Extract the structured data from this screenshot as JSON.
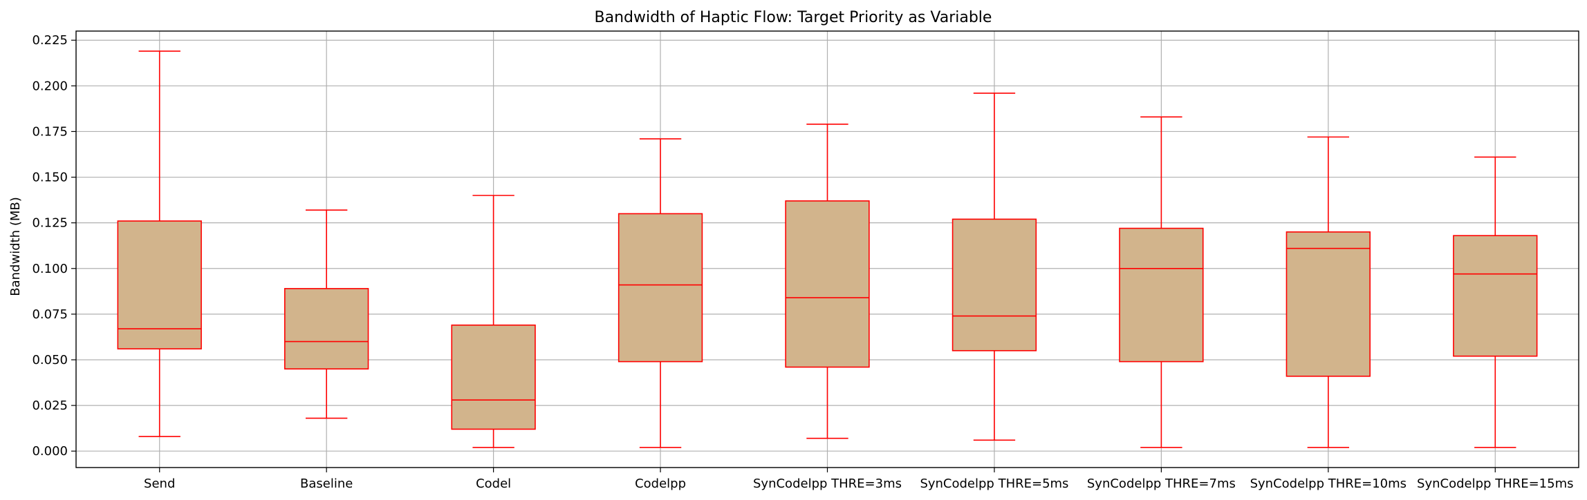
{
  "chart_data": {
    "type": "box",
    "title": "Bandwidth of Haptic Flow: Target Priority as Variable",
    "xlabel": "",
    "ylabel": "Bandwidth (MB)",
    "ylim": [
      -0.009,
      0.23
    ],
    "yticks": [
      0.0,
      0.025,
      0.05,
      0.075,
      0.1,
      0.125,
      0.15,
      0.175,
      0.2,
      0.225
    ],
    "ytick_labels": [
      "0.000",
      "0.025",
      "0.050",
      "0.075",
      "0.100",
      "0.125",
      "0.150",
      "0.175",
      "0.200",
      "0.225"
    ],
    "grid": true,
    "colors": {
      "box_fill": "#d2b48c",
      "box_edge": "#ff0000",
      "grid": "#b0b0b0",
      "axis": "#000000"
    },
    "categories": [
      "Send",
      "Baseline",
      "Codel",
      "Codelpp",
      "SynCodelpp THRE=3ms",
      "SynCodelpp THRE=5ms",
      "SynCodelpp THRE=7ms",
      "SynCodelpp THRE=10ms",
      "SynCodelpp THRE=15ms"
    ],
    "boxes": [
      {
        "whisker_low": 0.008,
        "q1": 0.056,
        "median": 0.067,
        "q3": 0.126,
        "whisker_high": 0.219
      },
      {
        "whisker_low": 0.018,
        "q1": 0.045,
        "median": 0.06,
        "q3": 0.089,
        "whisker_high": 0.132
      },
      {
        "whisker_low": 0.002,
        "q1": 0.012,
        "median": 0.028,
        "q3": 0.069,
        "whisker_high": 0.14
      },
      {
        "whisker_low": 0.002,
        "q1": 0.049,
        "median": 0.091,
        "q3": 0.13,
        "whisker_high": 0.171
      },
      {
        "whisker_low": 0.007,
        "q1": 0.046,
        "median": 0.084,
        "q3": 0.137,
        "whisker_high": 0.179
      },
      {
        "whisker_low": 0.006,
        "q1": 0.055,
        "median": 0.074,
        "q3": 0.127,
        "whisker_high": 0.196
      },
      {
        "whisker_low": 0.002,
        "q1": 0.049,
        "median": 0.1,
        "q3": 0.122,
        "whisker_high": 0.183
      },
      {
        "whisker_low": 0.002,
        "q1": 0.041,
        "median": 0.111,
        "q3": 0.12,
        "whisker_high": 0.172
      },
      {
        "whisker_low": 0.002,
        "q1": 0.052,
        "median": 0.097,
        "q3": 0.118,
        "whisker_high": 0.161
      }
    ]
  }
}
